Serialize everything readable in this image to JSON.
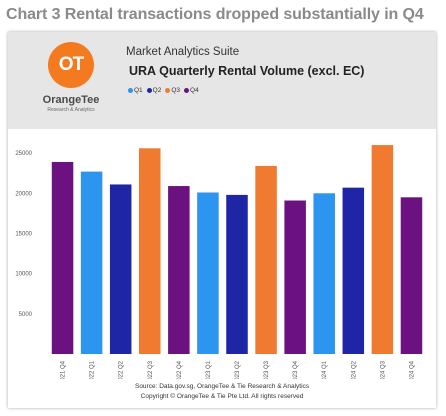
{
  "page_heading": "Chart 3 Rental transactions dropped substantially in Q4",
  "brand": {
    "logo_text": "OT",
    "name": "OrangeTee",
    "tagline": "Research & Analytics"
  },
  "suite_name": "Market Analytics Suite",
  "footer": {
    "source": "Source: Data.gov.sg, OrangeTee & Tie Research & Analytics",
    "copyright": "Copyright © OrangeTee & Tie Pte Ltd. All rights reserved"
  },
  "colors": {
    "Q1": "#2b95f0",
    "Q2": "#1f26a6",
    "Q3": "#ef7a30",
    "Q4": "#6b1280",
    "brand_orange": "#f47a20"
  },
  "chart_data": {
    "type": "bar",
    "title": "URA Quarterly Rental Volume (excl. EC)",
    "xlabel": "",
    "ylabel": "",
    "ylim": [
      0,
      28000
    ],
    "yticks": [
      5000,
      10000,
      15000,
      20000,
      25000
    ],
    "grid": false,
    "legend_placement": "top-left",
    "legend": [
      "Q1",
      "Q2",
      "Q3",
      "Q4"
    ],
    "categories": [
      "2021 Q4",
      "2022 Q1",
      "2022 Q2",
      "2022 Q3",
      "2022 Q4",
      "2023 Q1",
      "2023 Q2",
      "2023 Q3",
      "2023 Q4",
      "2024 Q1",
      "2024 Q2",
      "2024 Q3",
      "2024 Q4"
    ],
    "quarters": [
      "Q4",
      "Q1",
      "Q2",
      "Q3",
      "Q4",
      "Q1",
      "Q2",
      "Q3",
      "Q4",
      "Q1",
      "Q2",
      "Q3",
      "Q4"
    ],
    "values": [
      23900,
      22700,
      21100,
      25600,
      20900,
      20100,
      19800,
      23400,
      19100,
      20000,
      20700,
      26000,
      19500
    ]
  }
}
